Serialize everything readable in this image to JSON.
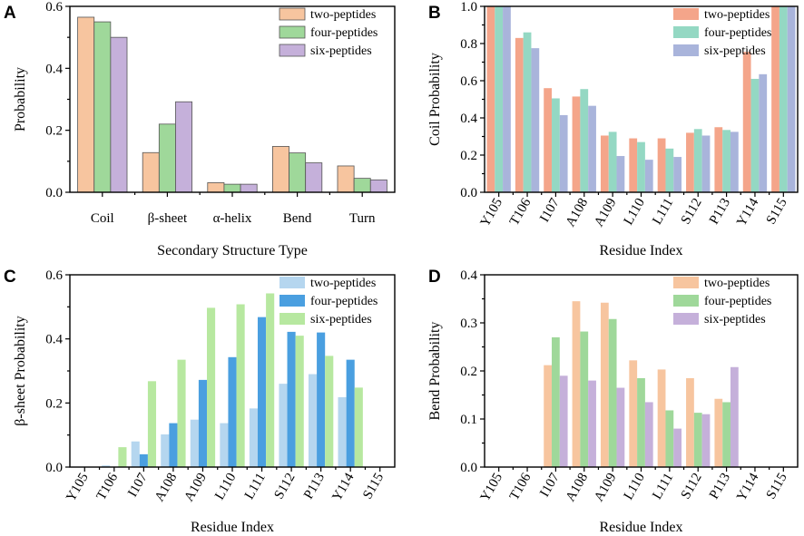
{
  "chart_data": [
    {
      "panel": "A",
      "type": "bar",
      "xlabel": "Secondary Structure Type",
      "ylabel": "Probability",
      "ylim": [
        0,
        0.6
      ],
      "yticks": [
        "0.0",
        "0.2",
        "0.4",
        "0.6"
      ],
      "categories": [
        "Coil",
        "β-sheet",
        "α-helix",
        "Bend",
        "Turn"
      ],
      "rotate_labels": false,
      "legend_position": "top-right",
      "series": [
        {
          "name": "two-peptides",
          "color": "#F7C59F",
          "values": [
            0.565,
            0.128,
            0.031,
            0.148,
            0.085
          ]
        },
        {
          "name": "four-peptides",
          "color": "#9FD89A",
          "values": [
            0.55,
            0.22,
            0.026,
            0.127,
            0.045
          ]
        },
        {
          "name": "six-peptides",
          "color": "#C5B0DA",
          "values": [
            0.5,
            0.292,
            0.026,
            0.095,
            0.04
          ]
        }
      ]
    },
    {
      "panel": "B",
      "type": "bar",
      "xlabel": "Residue Index",
      "ylabel": "Coil Probability",
      "ylim": [
        0,
        1.0
      ],
      "yticks": [
        "0.0",
        "0.2",
        "0.4",
        "0.6",
        "0.8",
        "1.0"
      ],
      "categories": [
        "Y105",
        "T106",
        "I107",
        "A108",
        "A109",
        "L110",
        "L111",
        "S112",
        "P113",
        "Y114",
        "S115"
      ],
      "rotate_labels": true,
      "legend_position": "top-right",
      "series": [
        {
          "name": "two-peptides",
          "color": "#F4A58A",
          "values": [
            1.0,
            0.83,
            0.56,
            0.515,
            0.305,
            0.29,
            0.29,
            0.32,
            0.35,
            0.755,
            1.0
          ]
        },
        {
          "name": "four-peptides",
          "color": "#94D8C3",
          "values": [
            1.0,
            0.86,
            0.505,
            0.555,
            0.325,
            0.27,
            0.235,
            0.34,
            0.335,
            0.61,
            1.0
          ]
        },
        {
          "name": "six-peptides",
          "color": "#A9B4DB",
          "values": [
            1.0,
            0.775,
            0.415,
            0.465,
            0.195,
            0.175,
            0.19,
            0.305,
            0.325,
            0.635,
            1.0
          ]
        }
      ]
    },
    {
      "panel": "C",
      "type": "bar",
      "xlabel": "Residue Index",
      "ylabel": "β-sheet Probability",
      "ylim": [
        0,
        0.6
      ],
      "yticks": [
        "0.0",
        "0.2",
        "0.4",
        "0.6"
      ],
      "categories": [
        "Y105",
        "T106",
        "I107",
        "A108",
        "A109",
        "L110",
        "L111",
        "S112",
        "P113",
        "Y114",
        "S115"
      ],
      "rotate_labels": true,
      "legend_position": "top-right",
      "series": [
        {
          "name": "two-peptides",
          "color": "#B5D6EF",
          "values": [
            0,
            0.005,
            0.08,
            0.102,
            0.148,
            0.137,
            0.183,
            0.26,
            0.29,
            0.218,
            0
          ]
        },
        {
          "name": "four-peptides",
          "color": "#4A9FE0",
          "values": [
            0,
            0,
            0.04,
            0.137,
            0.272,
            0.343,
            0.468,
            0.422,
            0.42,
            0.335,
            0
          ]
        },
        {
          "name": "six-peptides",
          "color": "#B7E8A0",
          "values": [
            0,
            0.062,
            0.268,
            0.335,
            0.497,
            0.508,
            0.542,
            0.41,
            0.347,
            0.248,
            0
          ]
        }
      ]
    },
    {
      "panel": "D",
      "type": "bar",
      "xlabel": "Residue Index",
      "ylabel": "Bend Probability",
      "ylim": [
        0,
        0.4
      ],
      "yticks": [
        "0.0",
        "0.1",
        "0.2",
        "0.3",
        "0.4"
      ],
      "categories": [
        "Y105",
        "T106",
        "I107",
        "A108",
        "A109",
        "L110",
        "L111",
        "S112",
        "P113",
        "Y114",
        "S115"
      ],
      "rotate_labels": true,
      "legend_position": "top-right",
      "series": [
        {
          "name": "two-peptides",
          "color": "#F7C59F",
          "values": [
            0,
            0,
            0.212,
            0.345,
            0.342,
            0.222,
            0.203,
            0.185,
            0.142,
            0,
            0
          ]
        },
        {
          "name": "four-peptides",
          "color": "#9FD89A",
          "values": [
            0,
            0,
            0.27,
            0.282,
            0.308,
            0.185,
            0.118,
            0.113,
            0.135,
            0,
            0
          ]
        },
        {
          "name": "six-peptides",
          "color": "#C5B0DA",
          "values": [
            0,
            0,
            0.19,
            0.18,
            0.165,
            0.135,
            0.08,
            0.11,
            0.208,
            0,
            0
          ]
        }
      ]
    }
  ]
}
